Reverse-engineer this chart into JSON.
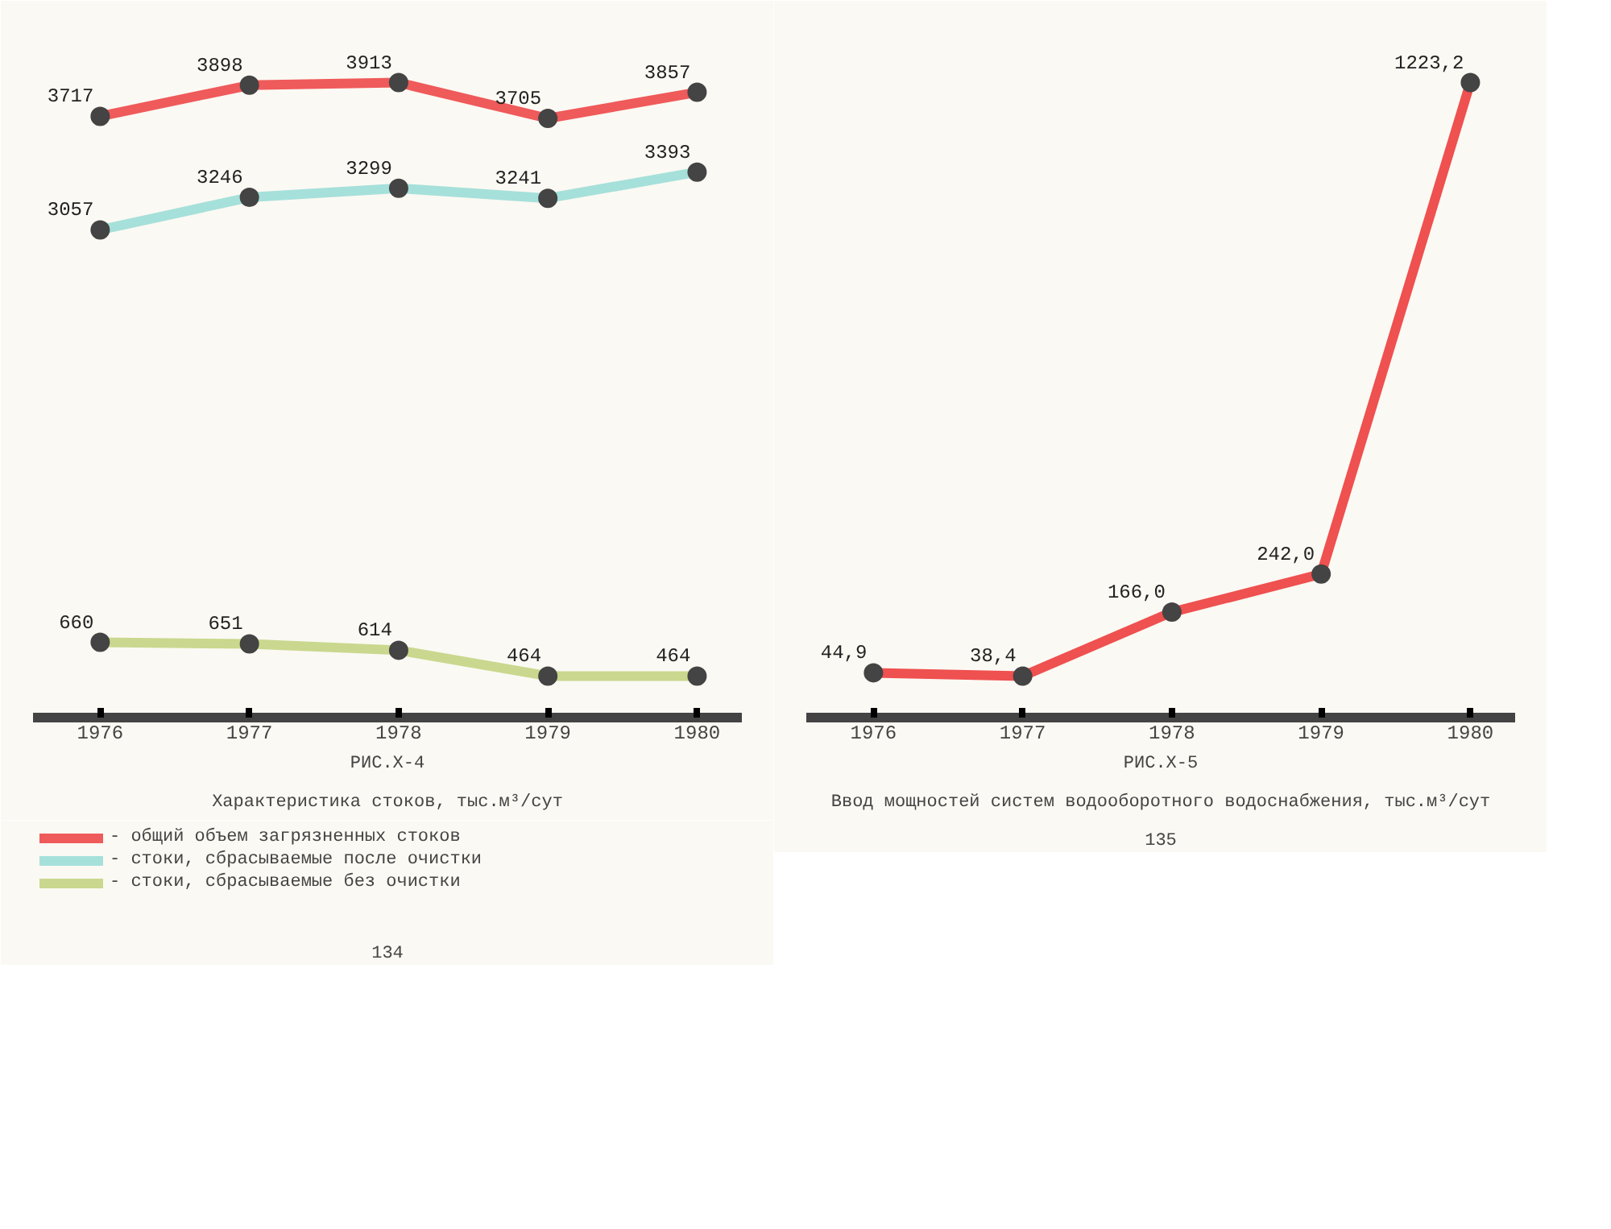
{
  "chart_data": [
    {
      "type": "line",
      "title": "РИС.X-4",
      "subtitle": "Характеристика стоков, тыс.м³/сут",
      "categories": [
        "1976",
        "1977",
        "1978",
        "1979",
        "1980"
      ],
      "marker": "circle",
      "data_labels": true,
      "grid": false,
      "legend": "bottom",
      "tick_labels": "x",
      "annotations": [
        "134"
      ],
      "series": [
        {
          "name": "- общий объем загрязненных стоков",
          "color": "#ef5a5a",
          "values": [
            3717,
            3898,
            3913,
            3705,
            3857
          ]
        },
        {
          "name": "- стоки, сбрасываемые после очистки",
          "color": "#a6e0da",
          "values": [
            3057,
            3246,
            3299,
            3241,
            3393
          ]
        },
        {
          "name": "- стоки, сбрасываемые без очистки",
          "color": "#c9d88e",
          "values": [
            660,
            651,
            614,
            464,
            464
          ]
        }
      ]
    },
    {
      "type": "line",
      "title": "РИС.X-5",
      "subtitle": "Ввод мощностей систем водооборотного водоснабжения, тыс.м³/сут",
      "categories": [
        "1976",
        "1977",
        "1978",
        "1979",
        "1980"
      ],
      "marker": "circle",
      "grid": false,
      "tick_labels": "x",
      "annotations": [
        "135"
      ],
      "series": [
        {
          "color": "#ef5050",
          "values": [
            44.9,
            38.4,
            166.0,
            242.0,
            1223.2
          ],
          "value_labels": [
            "44,9",
            "38,4",
            "166,0",
            "242,0",
            "1223,2"
          ]
        }
      ]
    }
  ]
}
